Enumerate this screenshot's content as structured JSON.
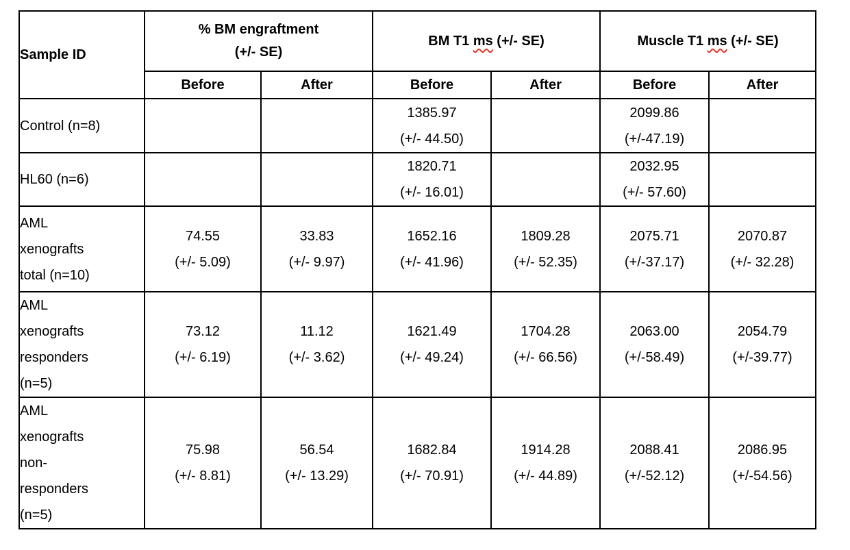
{
  "table": {
    "spellcheck_color": "#e8332a",
    "header": {
      "sample_id": "Sample ID",
      "groups": [
        {
          "line1": "% BM engraftment",
          "line2": "(+/- SE)"
        },
        {
          "pre": "BM T1 ",
          "misspelled": "ms",
          "post": " (+/- SE)"
        },
        {
          "pre": "Muscle T1 ",
          "misspelled": "ms",
          "post": " (+/- SE)"
        }
      ],
      "sub_labels": [
        "Before",
        "After",
        "Before",
        "After",
        "Before",
        "After"
      ]
    },
    "rows": [
      {
        "sample_id_lines": [
          "Control (n=8)"
        ],
        "cells": [
          {
            "value": "",
            "se": ""
          },
          {
            "value": "",
            "se": ""
          },
          {
            "value": "1385.97",
            "se": "(+/- 44.50)"
          },
          {
            "value": "",
            "se": ""
          },
          {
            "value": "2099.86",
            "se": "(+/-47.19)"
          },
          {
            "value": "",
            "se": ""
          }
        ]
      },
      {
        "sample_id_lines": [
          "HL60 (n=6)"
        ],
        "cells": [
          {
            "value": "",
            "se": ""
          },
          {
            "value": "",
            "se": ""
          },
          {
            "value": "1820.71",
            "se": "(+/- 16.01)"
          },
          {
            "value": "",
            "se": ""
          },
          {
            "value": "2032.95",
            "se": "(+/- 57.60)"
          },
          {
            "value": "",
            "se": ""
          }
        ]
      },
      {
        "sample_id_lines": [
          "AML",
          "xenografts",
          "total (n=10)"
        ],
        "cells": [
          {
            "value": "74.55",
            "se": "(+/- 5.09)"
          },
          {
            "value": "33.83",
            "se": "(+/- 9.97)"
          },
          {
            "value": "1652.16",
            "se": "(+/- 41.96)"
          },
          {
            "value": "1809.28",
            "se": "(+/- 52.35)"
          },
          {
            "value": "2075.71",
            "se": "(+/-37.17)"
          },
          {
            "value": "2070.87",
            "se": "(+/- 32.28)"
          }
        ]
      },
      {
        "sample_id_lines": [
          "AML",
          "xenografts",
          "responders",
          "(n=5)"
        ],
        "cells": [
          {
            "value": "73.12",
            "se": "(+/- 6.19)"
          },
          {
            "value": "11.12",
            "se": "(+/- 3.62)"
          },
          {
            "value": "1621.49",
            "se": "(+/- 49.24)"
          },
          {
            "value": "1704.28",
            "se": "(+/- 66.56)"
          },
          {
            "value": "2063.00",
            "se": "(+/-58.49)"
          },
          {
            "value": "2054.79",
            "se": "(+/-39.77)"
          }
        ]
      },
      {
        "sample_id_lines": [
          "AML",
          "xenografts",
          "non-",
          "responders",
          "(n=5)"
        ],
        "cells": [
          {
            "value": "75.98",
            "se": "(+/- 8.81)"
          },
          {
            "value": "56.54",
            "se": "(+/- 13.29)"
          },
          {
            "value": "1682.84",
            "se": "(+/- 70.91)"
          },
          {
            "value": "1914.28",
            "se": "(+/- 44.89)"
          },
          {
            "value": "2088.41",
            "se": "(+/-52.12)"
          },
          {
            "value": "2086.95",
            "se": "(+/-54.56)"
          }
        ]
      }
    ]
  }
}
